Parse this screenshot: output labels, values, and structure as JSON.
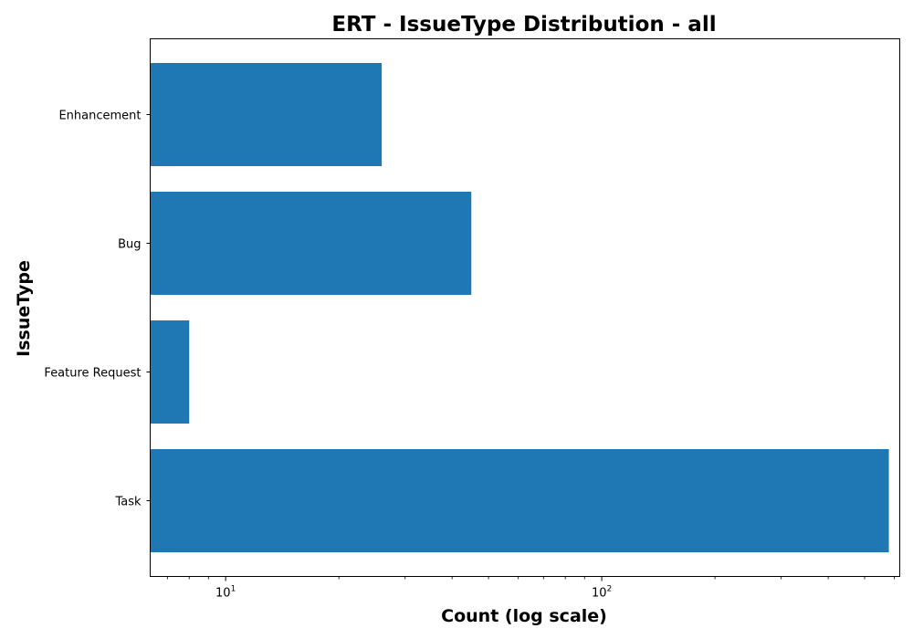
{
  "chart_data": {
    "type": "bar",
    "orientation": "horizontal",
    "title": "ERT - IssueType Distribution - all",
    "xlabel": "Count (log scale)",
    "ylabel": "IssueType",
    "x_scale": "log",
    "xlim": [
      6.3,
      620
    ],
    "x_tick_labels": [
      {
        "base": "10",
        "exp": "1",
        "value": 10
      },
      {
        "base": "10",
        "exp": "2",
        "value": 100
      }
    ],
    "categories": [
      "Enhancement",
      "Bug",
      "Feature Request",
      "Task"
    ],
    "values": [
      26,
      45,
      8,
      580
    ],
    "colors": {
      "bar": "#1f77b4"
    },
    "grid": false,
    "legend": "none"
  }
}
